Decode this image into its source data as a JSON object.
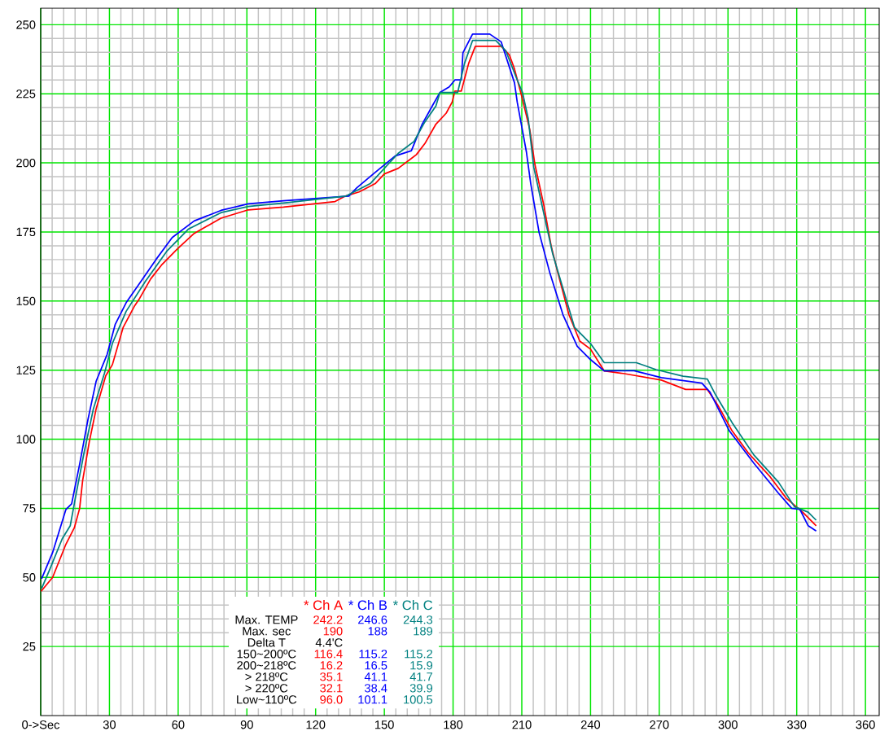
{
  "chart_data": {
    "type": "line",
    "xlim": [
      0,
      366
    ],
    "ylim": [
      0,
      256
    ],
    "xticks": [
      {
        "value": 0,
        "label": "0->Sec"
      },
      30,
      60,
      90,
      120,
      150,
      180,
      210,
      240,
      270,
      300,
      330,
      360
    ],
    "yticks": [
      25,
      50,
      75,
      100,
      125,
      150,
      175,
      200,
      225,
      250
    ],
    "grid": true,
    "series": [
      {
        "name": "* Ch A",
        "color": "#ff0000",
        "x": [
          0.2,
          5.2,
          11,
          14.7,
          17,
          18.3,
          21.2,
          24.2,
          28.4,
          31.3,
          36,
          40.8,
          43.2,
          48,
          52.7,
          59.8,
          67,
          78.7,
          90.6,
          106,
          128.5,
          133,
          139,
          146,
          150,
          156,
          164,
          167.7,
          172.5,
          177,
          179.6,
          180.8,
          183.6,
          186.8,
          189.7,
          201,
          204.6,
          206.8,
          210,
          213.5,
          215.7,
          219.6,
          222.8,
          225.8,
          230.6,
          235.3,
          240,
          246,
          254.3,
          270.9,
          281.5,
          291,
          295.8,
          301.8,
          308.9,
          318.4,
          325.5,
          332.6,
          338.5
        ],
        "values": [
          45,
          50,
          62,
          68,
          75,
          85,
          99,
          111,
          123,
          127,
          140.5,
          148,
          151,
          158,
          163,
          169,
          174.5,
          180,
          183,
          184,
          186,
          188,
          189.5,
          192.5,
          196,
          198,
          203,
          207,
          214,
          218,
          222,
          226,
          226,
          236,
          242.2,
          242.2,
          239,
          234,
          224,
          212,
          199.5,
          184.7,
          170,
          160,
          145,
          135.5,
          132.6,
          124.7,
          123.8,
          121.4,
          118,
          118,
          112,
          103,
          95,
          86.4,
          78.6,
          73.6,
          68.7
        ]
      },
      {
        "name": "* Ch B",
        "color": "#0000ff",
        "x": [
          0.4,
          5.2,
          11,
          13.5,
          17,
          20.6,
          24.2,
          29,
          32.5,
          37.3,
          42,
          50.3,
          57.4,
          67,
          78.7,
          90.6,
          106,
          134.5,
          138,
          145.2,
          154.7,
          161.8,
          166.5,
          171.2,
          174.3,
          178.3,
          180.8,
          183.6,
          184.3,
          188.5,
          196,
          201,
          206.8,
          208,
          212,
          213.9,
          217.5,
          222.3,
          228,
          234.2,
          240,
          246,
          259,
          270.9,
          288.6,
          292.2,
          300.6,
          311.3,
          322,
          327.8,
          331.4,
          335,
          338.5
        ],
        "values": [
          49.5,
          59,
          74.6,
          76.6,
          91,
          107,
          121,
          130.7,
          141.5,
          149.4,
          155,
          165,
          173,
          179,
          182.8,
          185.2,
          186.3,
          188,
          191,
          196,
          202.5,
          204.4,
          214,
          221,
          225.5,
          227.5,
          230,
          230,
          239.8,
          246.6,
          246.6,
          243.8,
          229,
          222,
          204,
          192.5,
          175,
          160,
          145,
          133.6,
          128.8,
          124.7,
          124.8,
          122.3,
          120.3,
          117,
          103,
          91.3,
          80.5,
          75,
          74.6,
          68.7,
          66.8
        ]
      },
      {
        "name": "* Ch C",
        "color": "#008080",
        "x": [
          0.4,
          4,
          9.4,
          12.9,
          15.3,
          18.9,
          23,
          27.8,
          31.3,
          37.3,
          45.6,
          55,
          64.4,
          78.7,
          90.6,
          106,
          133.3,
          144,
          156,
          163,
          167.6,
          172.5,
          174.3,
          182,
          185,
          188.5,
          198.6,
          203,
          208,
          210.3,
          212.8,
          215.2,
          218.8,
          223.5,
          233,
          240,
          246,
          260,
          268.6,
          280.4,
          291,
          294.7,
          301.8,
          311.3,
          322,
          329,
          335,
          338.5
        ],
        "values": [
          46,
          53,
          64,
          68.7,
          79.5,
          95,
          111,
          123.8,
          134.7,
          146.3,
          157,
          168,
          176,
          182,
          184.2,
          185.5,
          188,
          192.6,
          203.4,
          207.8,
          214.7,
          220.6,
          225.5,
          225.5,
          236,
          244.3,
          244.3,
          240.6,
          230,
          225.5,
          216,
          198.5,
          184.7,
          167,
          140.5,
          134.6,
          127.7,
          127.7,
          125.2,
          122.8,
          121.8,
          115.9,
          106,
          94.3,
          84.5,
          75.6,
          73.6,
          70.7
        ]
      }
    ],
    "annotations": [
      "Max. TEMP",
      "242.2",
      "246.6",
      "244.3",
      "Max. sec",
      "190",
      "188",
      "189",
      "Delta T",
      "4.4'C",
      null,
      null,
      "150~200ºC",
      "116.4",
      "115.2",
      "115.2",
      "200~218ºC",
      "16.2",
      "16.5",
      "15.9",
      "> 218ºC",
      "35.1",
      "41.1",
      "41.7",
      "> 220ºC",
      "32.1",
      "38.4",
      "39.9",
      "Low~110ºC",
      "96.0",
      "101.1",
      "100.5"
    ]
  }
}
